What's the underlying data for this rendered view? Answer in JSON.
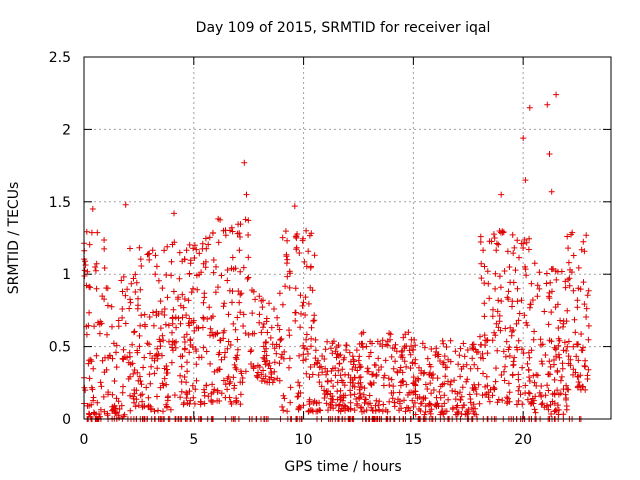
{
  "chart_data": {
    "type": "scatter",
    "title": "Day 109 of 2015, SRMTID for receiver iqal",
    "xlabel": "GPS time / hours",
    "ylabel": "SRMTID / TECUs",
    "xlim": [
      0,
      24
    ],
    "ylim": [
      0,
      2.5
    ],
    "xticks": [
      0,
      5,
      10,
      15,
      20
    ],
    "xtick_labels": [
      "0",
      "5",
      "10",
      "15",
      "20"
    ],
    "yticks": [
      0,
      0.5,
      1,
      1.5,
      2,
      2.5
    ],
    "ytick_labels": [
      "0",
      "0.5",
      "1",
      "1.5",
      "2",
      "2.5"
    ],
    "grid": true,
    "marker": "+",
    "series_color": "#e00000",
    "highlight_points": [
      {
        "x": 7.3,
        "y": 1.77
      },
      {
        "x": 7.4,
        "y": 1.55
      },
      {
        "x": 9.6,
        "y": 1.47
      },
      {
        "x": 20.0,
        "y": 1.94
      },
      {
        "x": 20.3,
        "y": 2.15
      },
      {
        "x": 21.1,
        "y": 2.17
      },
      {
        "x": 21.2,
        "y": 1.83
      },
      {
        "x": 21.5,
        "y": 2.24
      },
      {
        "x": 21.3,
        "y": 1.57
      },
      {
        "x": 20.1,
        "y": 1.65
      },
      {
        "x": 19.0,
        "y": 1.55
      },
      {
        "x": 0.4,
        "y": 1.45
      },
      {
        "x": 1.9,
        "y": 1.48
      },
      {
        "x": 4.1,
        "y": 1.42
      }
    ],
    "activity_profile": [
      {
        "x_start": 0.0,
        "x_end": 1.0,
        "y_min": 0.0,
        "y_max": 1.3,
        "count": 70
      },
      {
        "x_start": 1.0,
        "x_end": 2.0,
        "y_min": 0.0,
        "y_max": 1.0,
        "count": 60
      },
      {
        "x_start": 2.0,
        "x_end": 4.0,
        "y_min": 0.05,
        "y_max": 1.2,
        "count": 140
      },
      {
        "x_start": 4.0,
        "x_end": 6.0,
        "y_min": 0.1,
        "y_max": 1.3,
        "count": 150
      },
      {
        "x_start": 6.0,
        "x_end": 7.5,
        "y_min": 0.1,
        "y_max": 1.4,
        "count": 110
      },
      {
        "x_start": 7.5,
        "x_end": 9.0,
        "y_min": 0.25,
        "y_max": 0.9,
        "count": 80
      },
      {
        "x_start": 9.0,
        "x_end": 10.5,
        "y_min": 0.05,
        "y_max": 1.3,
        "count": 100
      },
      {
        "x_start": 10.5,
        "x_end": 12.5,
        "y_min": 0.05,
        "y_max": 0.55,
        "count": 130
      },
      {
        "x_start": 12.5,
        "x_end": 15.0,
        "y_min": 0.05,
        "y_max": 0.6,
        "count": 150
      },
      {
        "x_start": 15.0,
        "x_end": 18.0,
        "y_min": 0.03,
        "y_max": 0.55,
        "count": 170
      },
      {
        "x_start": 18.0,
        "x_end": 19.0,
        "y_min": 0.1,
        "y_max": 1.3,
        "count": 70
      },
      {
        "x_start": 19.0,
        "x_end": 20.5,
        "y_min": 0.1,
        "y_max": 1.3,
        "count": 110
      },
      {
        "x_start": 20.5,
        "x_end": 22.0,
        "y_min": 0.03,
        "y_max": 1.1,
        "count": 110
      },
      {
        "x_start": 22.0,
        "x_end": 23.0,
        "y_min": 0.2,
        "y_max": 1.35,
        "count": 70
      }
    ],
    "zero_line_points": {
      "x_start": 0.0,
      "x_end": 23.0,
      "count": 200
    }
  }
}
